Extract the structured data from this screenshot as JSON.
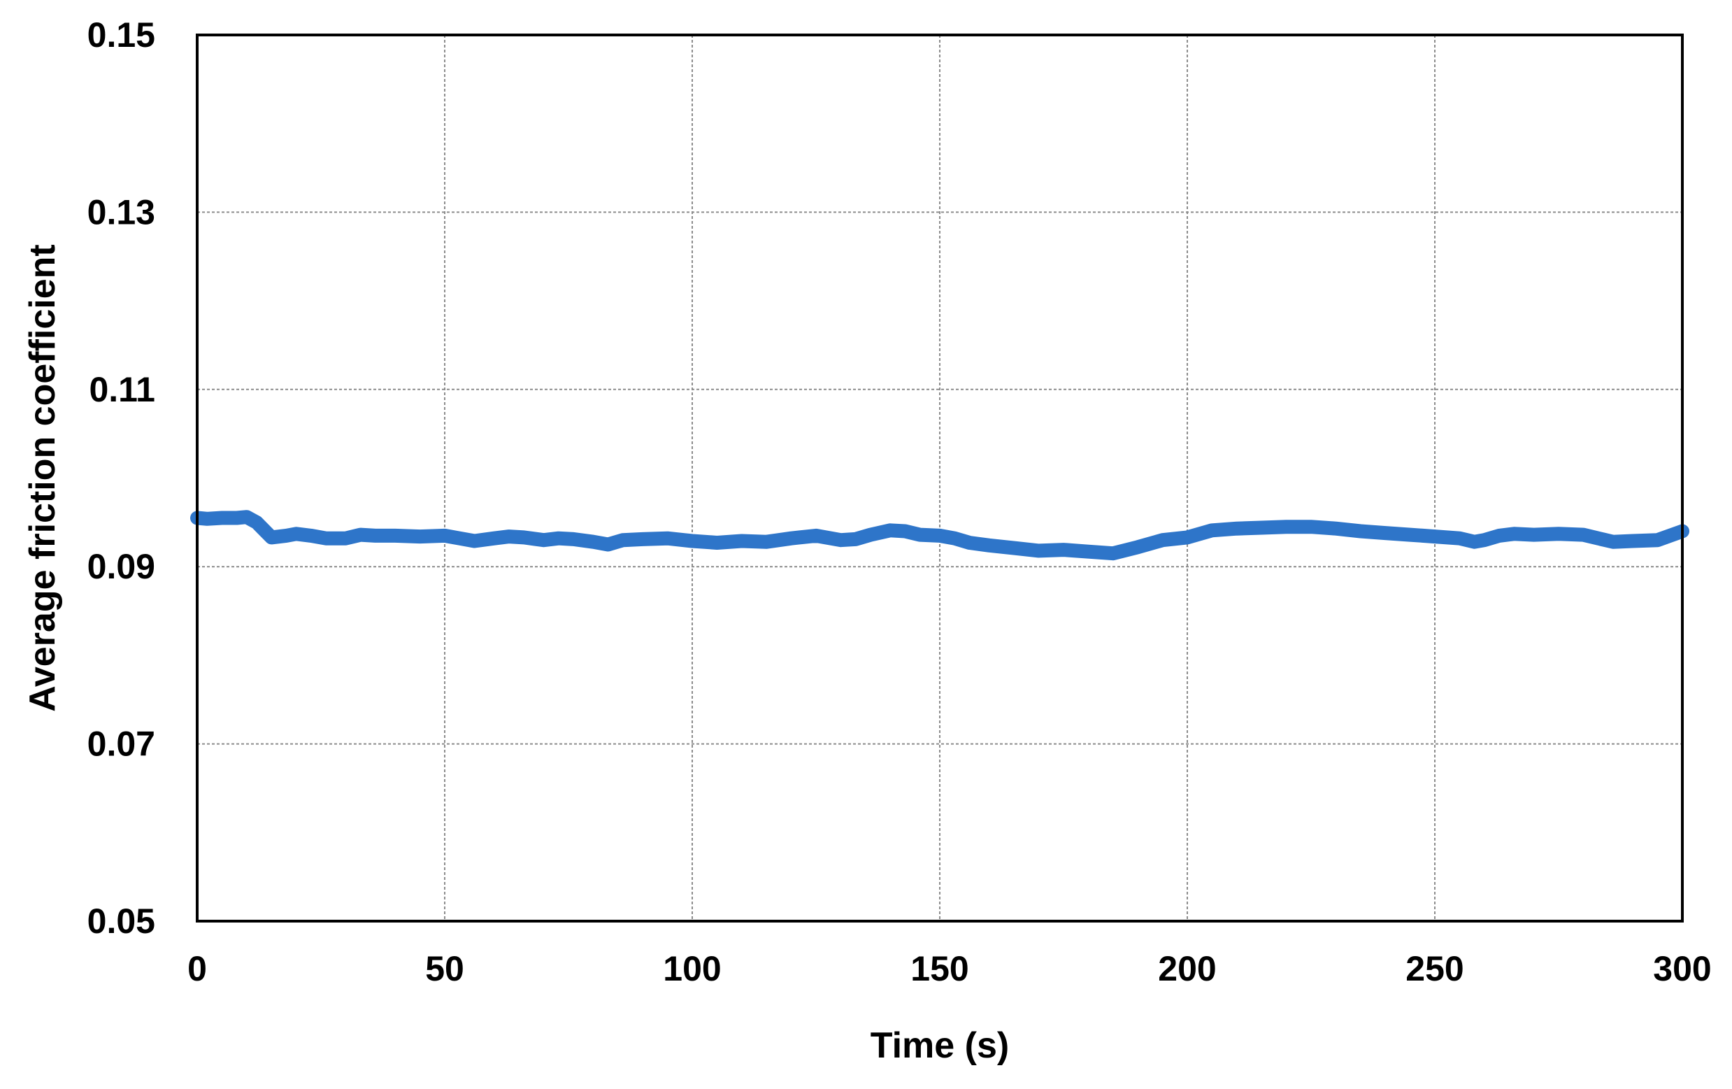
{
  "chart_data": {
    "type": "line",
    "title": "",
    "xlabel": "Time (s)",
    "ylabel": "Average friction coefficient",
    "xlim": [
      0,
      300
    ],
    "ylim": [
      0.05,
      0.15
    ],
    "x_ticks": [
      0,
      50,
      100,
      150,
      200,
      250,
      300
    ],
    "x_tick_labels": [
      "0",
      "50",
      "100",
      "150",
      "200",
      "250",
      "300"
    ],
    "y_ticks": [
      0.05,
      0.07,
      0.09,
      0.11,
      0.13,
      0.15
    ],
    "y_tick_labels": [
      "0.05",
      "0.07",
      "0.09",
      "0.11",
      "0.13",
      "0.15"
    ],
    "grid": true,
    "legend": "none",
    "colors": {
      "series": "#2E75C9",
      "grid": "#8c8c8c",
      "axis": "#000000"
    },
    "series": [
      {
        "x": [
          0,
          2,
          5,
          8,
          10,
          12,
          15,
          18,
          20,
          23,
          26,
          30,
          33,
          36,
          40,
          45,
          50,
          53,
          56,
          60,
          63,
          66,
          70,
          73,
          76,
          80,
          83,
          86,
          90,
          95,
          100,
          105,
          110,
          115,
          120,
          125,
          130,
          133,
          136,
          140,
          143,
          146,
          150,
          153,
          156,
          160,
          165,
          170,
          175,
          180,
          185,
          190,
          195,
          200,
          205,
          210,
          215,
          220,
          225,
          230,
          235,
          240,
          245,
          250,
          255,
          258,
          260,
          263,
          266,
          270,
          275,
          280,
          283,
          286,
          290,
          295,
          300
        ],
        "y": [
          0.0955,
          0.0954,
          0.0955,
          0.0955,
          0.0956,
          0.095,
          0.0933,
          0.0935,
          0.0937,
          0.0935,
          0.0932,
          0.0932,
          0.0936,
          0.0935,
          0.0935,
          0.0934,
          0.0935,
          0.0932,
          0.0929,
          0.0932,
          0.0934,
          0.0933,
          0.093,
          0.0932,
          0.0931,
          0.0928,
          0.0925,
          0.093,
          0.0931,
          0.0932,
          0.0929,
          0.0927,
          0.0929,
          0.0928,
          0.0932,
          0.0935,
          0.093,
          0.0931,
          0.0936,
          0.0941,
          0.094,
          0.0936,
          0.0935,
          0.0932,
          0.0927,
          0.0924,
          0.0921,
          0.0918,
          0.0919,
          0.0917,
          0.0915,
          0.0922,
          0.093,
          0.0933,
          0.0941,
          0.0943,
          0.0944,
          0.0945,
          0.0945,
          0.0943,
          0.094,
          0.0938,
          0.0936,
          0.0934,
          0.0932,
          0.0928,
          0.093,
          0.0935,
          0.0937,
          0.0936,
          0.0937,
          0.0936,
          0.0932,
          0.0928,
          0.0929,
          0.093,
          0.094
        ]
      }
    ]
  }
}
